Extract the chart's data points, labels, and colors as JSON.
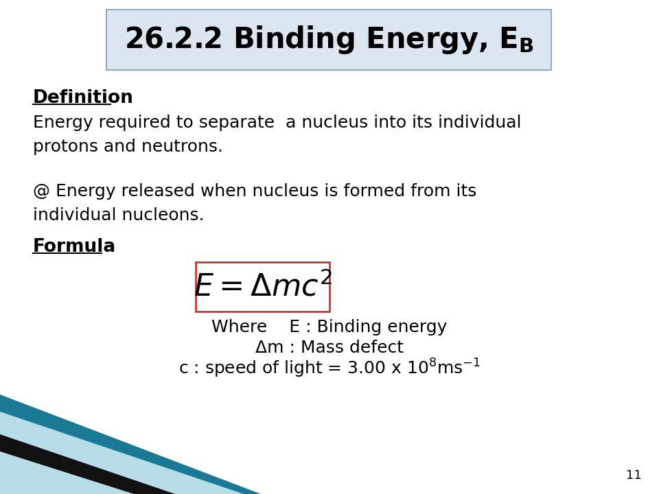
{
  "background_color": "#ffffff",
  "title_box_facecolor": "#dce6f1",
  "title_box_edgecolor": "#8eaacc",
  "title_fontsize": 30,
  "definition_label": "Definition",
  "def_fontsize": 19,
  "body_fontsize": 18,
  "paragraph1": "Energy required to separate  a nucleus into its individual\nprotons and neutrons.",
  "paragraph2": "@ Energy released when nucleus is formed from its\nindividual nucleons.",
  "formula_label": "Formula",
  "where_line1": "Where    E : Binding energy",
  "where_line2": "Δm : Mass defect",
  "where_line3": "c : speed of light = 3.00 x 10$^{8}$ms$^{-1}$",
  "page_number": "11",
  "formula_box_edgecolor": "#c0392b"
}
